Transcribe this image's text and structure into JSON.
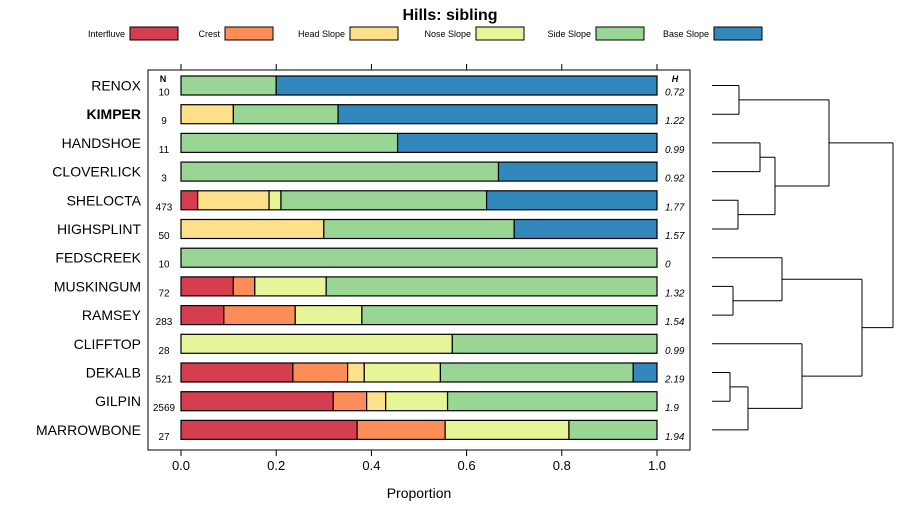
{
  "chart_data": {
    "type": "bar",
    "orientation": "horizontal",
    "stacked": true,
    "title": "Hills: sibling",
    "xlabel": "Proportion",
    "ylabel": "",
    "xlim": [
      0,
      1
    ],
    "xticks": [
      "0.0",
      "0.2",
      "0.4",
      "0.6",
      "0.8",
      "1.0"
    ],
    "n_header": "N",
    "h_header": "H",
    "highlight": "KIMPER",
    "legend_position": "top",
    "legend": [
      {
        "name": "Interfluve",
        "color": "#d53e4f"
      },
      {
        "name": "Crest",
        "color": "#fc8d59"
      },
      {
        "name": "Head Slope",
        "color": "#fee08b"
      },
      {
        "name": "Nose Slope",
        "color": "#e6f598"
      },
      {
        "name": "Side Slope",
        "color": "#99d594"
      },
      {
        "name": "Base Slope",
        "color": "#3288bd"
      }
    ],
    "categories": [
      "RENOX",
      "KIMPER",
      "HANDSHOE",
      "CLOVERLICK",
      "SHELOCTA",
      "HIGHSPLINT",
      "FEDSCREEK",
      "MUSKINGUM",
      "RAMSEY",
      "CLIFFTOP",
      "DEKALB",
      "GILPIN",
      "MARROWBONE"
    ],
    "n": [
      "10",
      "9",
      "11",
      "3",
      "473",
      "50",
      "10",
      "72",
      "283",
      "28",
      "521",
      "2569",
      "27"
    ],
    "h": [
      "0.72",
      "1.22",
      "0.99",
      "0.92",
      "1.77",
      "1.57",
      "0",
      "1.32",
      "1.54",
      "0.99",
      "2.19",
      "1.9",
      "1.94"
    ],
    "series": [
      {
        "name": "Interfluve",
        "values": [
          0,
          0,
          0,
          0,
          0.035,
          0,
          0,
          0.11,
          0.09,
          0,
          0.235,
          0.32,
          0.37
        ]
      },
      {
        "name": "Crest",
        "values": [
          0,
          0,
          0,
          0,
          0,
          0,
          0,
          0.045,
          0.15,
          0,
          0.115,
          0.07,
          0.185
        ]
      },
      {
        "name": "Head Slope",
        "values": [
          0,
          0.11,
          0,
          0,
          0.15,
          0.3,
          0,
          0,
          0,
          0,
          0.035,
          0.04,
          0
        ]
      },
      {
        "name": "Nose Slope",
        "values": [
          0,
          0,
          0,
          0,
          0.025,
          0,
          0,
          0.15,
          0.14,
          0.57,
          0.16,
          0.13,
          0.26
        ]
      },
      {
        "name": "Side Slope",
        "values": [
          0.2,
          0.22,
          0.455,
          0.667,
          0.432,
          0.4,
          1.0,
          0.695,
          0.62,
          0.43,
          0.405,
          0.44,
          0.185
        ]
      },
      {
        "name": "Base Slope",
        "values": [
          0.8,
          0.67,
          0.545,
          0.333,
          0.358,
          0.3,
          0,
          0,
          0,
          0,
          0.05,
          0,
          0
        ]
      }
    ],
    "dendrogram": true
  }
}
